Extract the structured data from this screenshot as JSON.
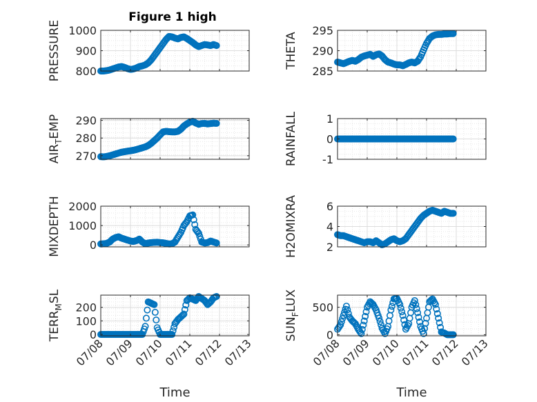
{
  "figure_title": "Figure 1 high",
  "chart_data": [
    {
      "type": "scatter",
      "ylabel": "PRESSURE",
      "ylim": [
        800,
        1000
      ],
      "yticks": [
        800,
        900,
        1000
      ],
      "xlim": [
        0,
        5
      ],
      "xtick_labels": [],
      "grid": true,
      "marker_color": "#0072BD",
      "x": [
        0.0,
        0.1,
        0.2,
        0.3,
        0.4,
        0.5,
        0.6,
        0.7,
        0.8,
        0.9,
        1.0,
        1.1,
        1.2,
        1.3,
        1.4,
        1.5,
        1.6,
        1.7,
        1.8,
        1.9,
        2.0,
        2.1,
        2.2,
        2.3,
        2.4,
        2.5,
        2.6,
        2.7,
        2.8,
        2.9,
        3.0,
        3.1,
        3.2,
        3.3,
        3.4,
        3.5,
        3.6,
        3.7,
        3.8,
        3.9
      ],
      "y": [
        800,
        800,
        802,
        805,
        810,
        815,
        820,
        822,
        818,
        812,
        808,
        810,
        815,
        822,
        825,
        830,
        840,
        855,
        875,
        895,
        915,
        935,
        955,
        970,
        968,
        962,
        958,
        965,
        968,
        960,
        950,
        940,
        928,
        920,
        925,
        930,
        928,
        925,
        930,
        925
      ]
    },
    {
      "type": "scatter",
      "ylabel": "THETA",
      "ylim": [
        285,
        295
      ],
      "yticks": [
        285,
        290,
        295
      ],
      "xlim": [
        0,
        5
      ],
      "xtick_labels": [],
      "grid": true,
      "marker_color": "#0072BD",
      "x": [
        0.0,
        0.1,
        0.2,
        0.3,
        0.4,
        0.5,
        0.6,
        0.7,
        0.8,
        0.9,
        1.0,
        1.1,
        1.2,
        1.3,
        1.4,
        1.5,
        1.6,
        1.7,
        1.8,
        1.9,
        2.0,
        2.1,
        2.2,
        2.3,
        2.4,
        2.5,
        2.6,
        2.7,
        2.8,
        2.9,
        3.0,
        3.1,
        3.2,
        3.3,
        3.4,
        3.5,
        3.6,
        3.7,
        3.8,
        3.9
      ],
      "y": [
        287.2,
        287.0,
        286.8,
        287.1,
        287.4,
        287.6,
        287.4,
        287.8,
        288.4,
        288.7,
        288.9,
        289.1,
        288.6,
        289.0,
        289.2,
        288.7,
        287.8,
        287.2,
        287.0,
        286.7,
        286.5,
        286.5,
        286.3,
        286.6,
        287.0,
        287.2,
        287.0,
        287.4,
        288.5,
        290.2,
        291.8,
        293.0,
        293.6,
        293.9,
        294.0,
        294.0,
        294.1,
        294.1,
        294.2,
        294.2
      ]
    },
    {
      "type": "scatter",
      "ylabel": "AIR_TEMP",
      "ylim": [
        268,
        291
      ],
      "yticks": [
        270,
        280,
        290
      ],
      "xlim": [
        0,
        5
      ],
      "xtick_labels": [],
      "grid": true,
      "marker_color": "#0072BD",
      "x": [
        0.0,
        0.1,
        0.2,
        0.3,
        0.4,
        0.5,
        0.6,
        0.7,
        0.8,
        0.9,
        1.0,
        1.1,
        1.2,
        1.3,
        1.4,
        1.5,
        1.6,
        1.7,
        1.8,
        1.9,
        2.0,
        2.1,
        2.2,
        2.3,
        2.4,
        2.5,
        2.6,
        2.7,
        2.8,
        2.9,
        3.0,
        3.1,
        3.2,
        3.3,
        3.4,
        3.5,
        3.6,
        3.7,
        3.8,
        3.9
      ],
      "y": [
        269.5,
        269.4,
        269.6,
        270.0,
        270.5,
        271.0,
        271.5,
        272.0,
        272.3,
        272.6,
        272.8,
        273.1,
        273.5,
        274.0,
        274.5,
        275.0,
        275.8,
        277.0,
        278.5,
        280.0,
        281.8,
        283.5,
        283.8,
        283.6,
        283.5,
        283.5,
        283.8,
        285.0,
        286.8,
        288.0,
        289.0,
        289.5,
        288.5,
        287.8,
        288.2,
        288.3,
        288.0,
        288.2,
        288.4,
        288.3
      ]
    },
    {
      "type": "scatter",
      "ylabel": "RAINFALL",
      "ylim": [
        -1,
        1
      ],
      "yticks": [
        -1,
        0,
        1
      ],
      "xlim": [
        0,
        5
      ],
      "xtick_labels": [],
      "grid": true,
      "marker_color": "#0072BD",
      "x": [
        0.0,
        0.1,
        0.2,
        0.3,
        0.4,
        0.5,
        0.6,
        0.7,
        0.8,
        0.9,
        1.0,
        1.1,
        1.2,
        1.3,
        1.4,
        1.5,
        1.6,
        1.7,
        1.8,
        1.9,
        2.0,
        2.1,
        2.2,
        2.3,
        2.4,
        2.5,
        2.6,
        2.7,
        2.8,
        2.9,
        3.0,
        3.1,
        3.2,
        3.3,
        3.4,
        3.5,
        3.6,
        3.7,
        3.8,
        3.9
      ],
      "y": [
        0,
        0,
        0,
        0,
        0,
        0,
        0,
        0,
        0,
        0,
        0,
        0,
        0,
        0,
        0,
        0,
        0,
        0,
        0,
        0,
        0,
        0,
        0,
        0,
        0,
        0,
        0,
        0,
        0,
        0,
        0,
        0,
        0,
        0,
        0,
        0,
        0,
        0,
        0,
        0
      ]
    },
    {
      "type": "scatter",
      "ylabel": "MIXDEPTH",
      "ylim": [
        -100,
        2000
      ],
      "yticks": [
        0,
        1000,
        2000
      ],
      "xlim": [
        0,
        5
      ],
      "xtick_labels": [],
      "grid": true,
      "marker_color": "#0072BD",
      "x": [
        0.0,
        0.1,
        0.2,
        0.3,
        0.4,
        0.5,
        0.6,
        0.7,
        0.8,
        0.9,
        1.0,
        1.1,
        1.2,
        1.3,
        1.4,
        1.5,
        1.6,
        1.7,
        1.8,
        1.9,
        2.0,
        2.1,
        2.2,
        2.3,
        2.4,
        2.5,
        2.6,
        2.7,
        2.8,
        2.9,
        3.0,
        3.1,
        3.2,
        3.3,
        3.4,
        3.5,
        3.6,
        3.7,
        3.8,
        3.9
      ],
      "y": [
        50,
        60,
        80,
        150,
        300,
        380,
        420,
        350,
        300,
        250,
        200,
        180,
        220,
        300,
        150,
        60,
        100,
        120,
        130,
        140,
        120,
        110,
        80,
        50,
        60,
        150,
        400,
        650,
        1000,
        1200,
        1500,
        1550,
        800,
        600,
        150,
        100,
        120,
        200,
        150,
        100
      ]
    },
    {
      "type": "scatter",
      "ylabel": "H2OMIXRA",
      "ylim": [
        2,
        6
      ],
      "yticks": [
        2,
        4,
        6
      ],
      "xlim": [
        0,
        5
      ],
      "xtick_labels": [],
      "grid": true,
      "marker_color": "#0072BD",
      "x": [
        0.0,
        0.1,
        0.2,
        0.3,
        0.4,
        0.5,
        0.6,
        0.7,
        0.8,
        0.9,
        1.0,
        1.1,
        1.2,
        1.3,
        1.4,
        1.5,
        1.6,
        1.7,
        1.8,
        1.9,
        2.0,
        2.1,
        2.2,
        2.3,
        2.4,
        2.5,
        2.6,
        2.7,
        2.8,
        2.9,
        3.0,
        3.1,
        3.2,
        3.3,
        3.4,
        3.5,
        3.6,
        3.7,
        3.8,
        3.9
      ],
      "y": [
        3.2,
        3.1,
        3.1,
        3.0,
        2.9,
        2.8,
        2.7,
        2.6,
        2.5,
        2.4,
        2.5,
        2.5,
        2.4,
        2.6,
        2.4,
        2.2,
        2.3,
        2.5,
        2.7,
        2.8,
        2.6,
        2.5,
        2.6,
        2.8,
        3.2,
        3.6,
        4.0,
        4.4,
        4.8,
        5.1,
        5.3,
        5.5,
        5.6,
        5.5,
        5.4,
        5.3,
        5.5,
        5.4,
        5.3,
        5.3
      ]
    },
    {
      "type": "scatter",
      "ylabel": "TERR_MSL",
      "ylim": [
        -10,
        290
      ],
      "yticks": [
        0,
        100,
        200
      ],
      "xlim": [
        0,
        5
      ],
      "xtick_labels": [
        "07/08",
        "07/09",
        "07/10",
        "07/11",
        "07/12",
        "07/13"
      ],
      "xlabel": "Time",
      "grid": true,
      "marker_color": "#0072BD",
      "x": [
        0.0,
        0.1,
        0.2,
        0.3,
        0.4,
        0.5,
        0.6,
        0.7,
        0.8,
        0.9,
        1.0,
        1.1,
        1.2,
        1.3,
        1.4,
        1.5,
        1.6,
        1.7,
        1.8,
        1.9,
        2.0,
        2.1,
        2.2,
        2.3,
        2.4,
        2.5,
        2.6,
        2.7,
        2.8,
        2.9,
        3.0,
        3.1,
        3.2,
        3.3,
        3.4,
        3.5,
        3.6,
        3.7,
        3.8,
        3.9
      ],
      "y": [
        0,
        0,
        0,
        0,
        0,
        0,
        0,
        0,
        0,
        0,
        0,
        0,
        0,
        0,
        0,
        60,
        240,
        230,
        220,
        50,
        0,
        0,
        0,
        0,
        0,
        80,
        110,
        130,
        150,
        250,
        270,
        260,
        250,
        280,
        265,
        250,
        220,
        240,
        270,
        280
      ]
    },
    {
      "type": "scatter",
      "ylabel": "SUN_FLUX",
      "ylim": [
        -20,
        720
      ],
      "yticks": [
        0,
        500
      ],
      "xlim": [
        0,
        5
      ],
      "xtick_labels": [
        "07/08",
        "07/09",
        "07/10",
        "07/11",
        "07/12",
        "07/13"
      ],
      "xlabel": "Time",
      "grid": true,
      "marker_color": "#0072BD",
      "x": [
        0.0,
        0.1,
        0.2,
        0.3,
        0.4,
        0.5,
        0.6,
        0.7,
        0.8,
        0.9,
        1.0,
        1.1,
        1.2,
        1.3,
        1.4,
        1.5,
        1.6,
        1.7,
        1.8,
        1.9,
        2.0,
        2.1,
        2.2,
        2.3,
        2.4,
        2.5,
        2.6,
        2.7,
        2.8,
        2.9,
        3.0,
        3.1,
        3.2,
        3.3,
        3.4,
        3.5,
        3.6,
        3.7,
        3.8,
        3.9
      ],
      "y": [
        100,
        180,
        350,
        520,
        320,
        250,
        200,
        100,
        20,
        250,
        500,
        600,
        550,
        450,
        300,
        120,
        20,
        150,
        450,
        650,
        660,
        550,
        350,
        100,
        200,
        500,
        620,
        400,
        150,
        20,
        300,
        600,
        650,
        550,
        300,
        50,
        30,
        0,
        0,
        0
      ]
    }
  ]
}
